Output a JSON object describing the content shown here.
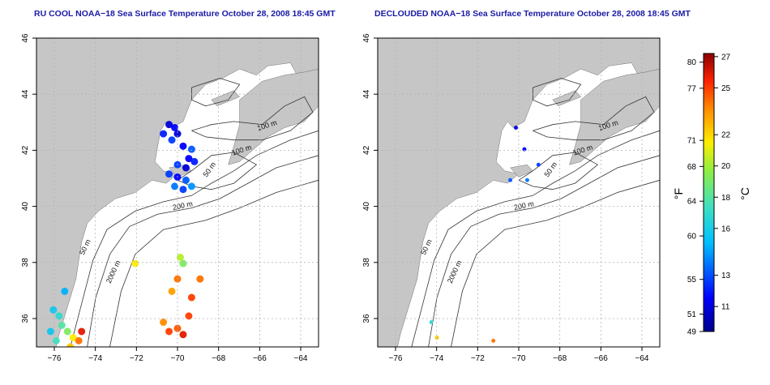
{
  "maps": [
    {
      "title": "RU COOL NOAA−18 Sea Surface Temperature October 28, 2008 18:45 GMT",
      "x_ticks": [
        "−76",
        "−74",
        "−72",
        "−70",
        "−68",
        "−66",
        "−64"
      ],
      "y_ticks": [
        "36",
        "38",
        "40",
        "42",
        "44",
        "46"
      ],
      "contour_labels": [
        "100 m",
        "100 m",
        "50 m",
        "200 m",
        "50 m",
        "2000 m"
      ]
    },
    {
      "title": "DECLOUDED NOAA−18 Sea Surface Temperature October 28, 2008 18:45 GMT",
      "x_ticks": [
        "−76",
        "−74",
        "−72",
        "−70",
        "−68",
        "−66",
        "−64"
      ],
      "y_ticks": [
        "36",
        "38",
        "40",
        "42",
        "44",
        "46"
      ],
      "contour_labels": [
        "100 m",
        "100 m",
        "50 m",
        "200 m",
        "50 m",
        "2000 m"
      ]
    }
  ],
  "colorbar": {
    "fahrenheit_label": "°F",
    "celsius_label": "°C",
    "fahrenheit_ticks": [
      "80",
      "77",
      "71",
      "68",
      "64",
      "60",
      "55",
      "51",
      "49"
    ],
    "celsius_ticks": [
      "27",
      "25",
      "22",
      "20",
      "18",
      "16",
      "13",
      "11"
    ]
  },
  "colors": {
    "land": "#c6c6c6",
    "title": "#1a1aa6",
    "grid": "#b4b4b4"
  }
}
